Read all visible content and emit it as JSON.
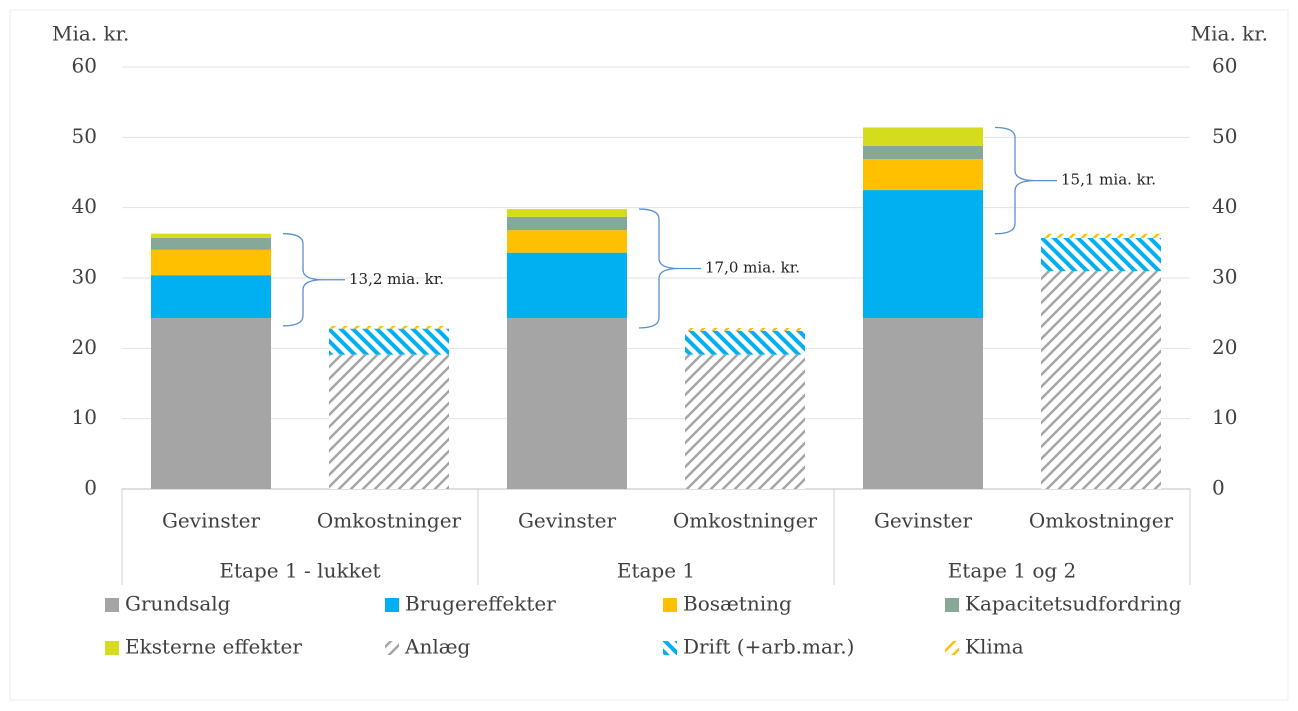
{
  "chart_data": {
    "type": "stacked-bar",
    "y_label": "Mia. kr.",
    "y2_label": "Mia. kr.",
    "categories": [
      "Gevinster",
      "Omkostninger",
      "Gevinster",
      "Omkostninger",
      "Gevinster",
      "Omkostninger"
    ],
    "groups": [
      "Etape 1 - lukket",
      "Etape 1",
      "Etape 1 og 2"
    ],
    "series": [
      {
        "name": "Grundsalg",
        "color": "#a5a5a5",
        "values": [
          24.3,
          null,
          24.3,
          null,
          24.3,
          null
        ]
      },
      {
        "name": "Brugereffekter",
        "color": "#00b0f0",
        "values": [
          6.1,
          null,
          9.3,
          null,
          18.2,
          null
        ]
      },
      {
        "name": "Bosætning",
        "color": "#ffc000",
        "values": [
          3.6,
          null,
          3.2,
          null,
          4.4,
          null
        ]
      },
      {
        "name": "Kapacitetsudfordring",
        "color": "#86a899",
        "values": [
          1.7,
          null,
          1.9,
          null,
          1.9,
          null
        ]
      },
      {
        "name": "Eksterne effekter",
        "color": "#d4dc1c",
        "values": [
          0.6,
          null,
          1.1,
          null,
          2.6,
          null
        ]
      },
      {
        "name": "Anlæg",
        "color": "#a5a5a5",
        "pattern": "hatch-right",
        "values": [
          null,
          19.1,
          null,
          19.1,
          null,
          31.0
        ]
      },
      {
        "name": "Drift (+arb.mar.)",
        "color": "#00b0f0",
        "pattern": "hatch-left",
        "values": [
          null,
          3.7,
          null,
          3.4,
          null,
          4.7
        ]
      },
      {
        "name": "Klima",
        "color": "#ffc000",
        "pattern": "hatch-right",
        "values": [
          null,
          0.4,
          null,
          0.4,
          null,
          0.6
        ]
      }
    ],
    "annotations": [
      "13,2 mia. kr.",
      "17,0 mia. kr.",
      "15,1 mia. kr."
    ],
    "ylim": [
      0,
      60
    ],
    "yticks": [
      0,
      10,
      20,
      30,
      40,
      50,
      60
    ],
    "y2lim": [
      0,
      60
    ],
    "y2ticks": [
      0,
      10,
      20,
      30,
      40,
      50,
      60
    ],
    "grid": true
  }
}
